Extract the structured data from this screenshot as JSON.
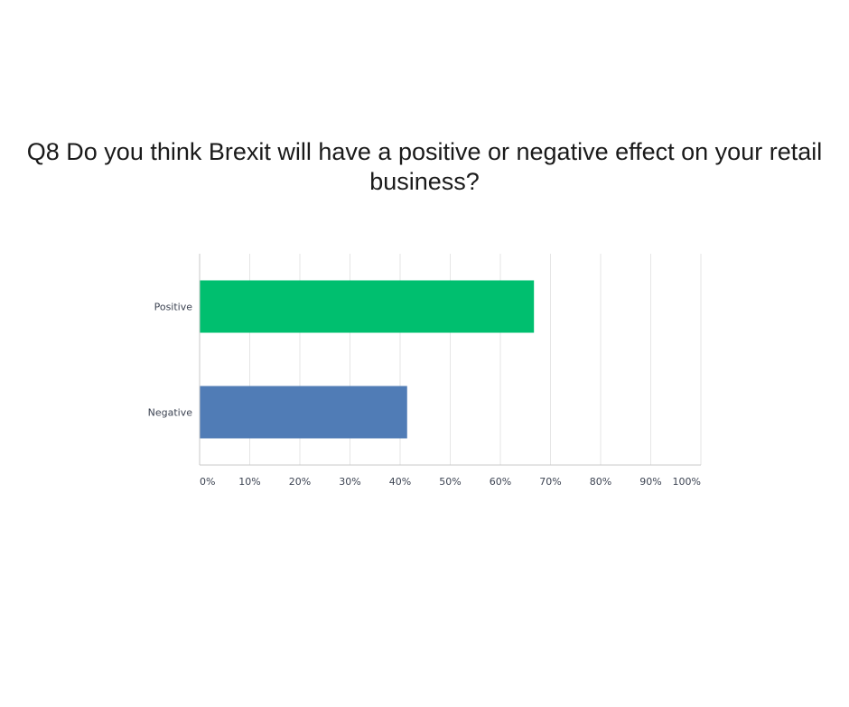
{
  "colors": {
    "background": "#ffffff",
    "grid": "#e6e6e6",
    "axis": "#c8c8c8",
    "text": "#3c4352",
    "title": "#1a1a1a"
  },
  "chart_data": {
    "type": "bar",
    "orientation": "horizontal",
    "title": "Q8 Do you think Brexit will have a positive or negative effect on your retail business?",
    "xlabel": "",
    "ylabel": "",
    "xlim": [
      0,
      100
    ],
    "grid": true,
    "legend": "none",
    "categories": [
      "Positive",
      "Negative"
    ],
    "values": [
      66.7,
      41.4
    ],
    "bar_colors": [
      "#00bf6f",
      "#507cb6"
    ],
    "x_ticks": [
      0,
      10,
      20,
      30,
      40,
      50,
      60,
      70,
      80,
      90,
      100
    ],
    "x_tick_labels": [
      "0%",
      "10%",
      "20%",
      "30%",
      "40%",
      "50%",
      "60%",
      "70%",
      "80%",
      "90%",
      "100%"
    ]
  }
}
